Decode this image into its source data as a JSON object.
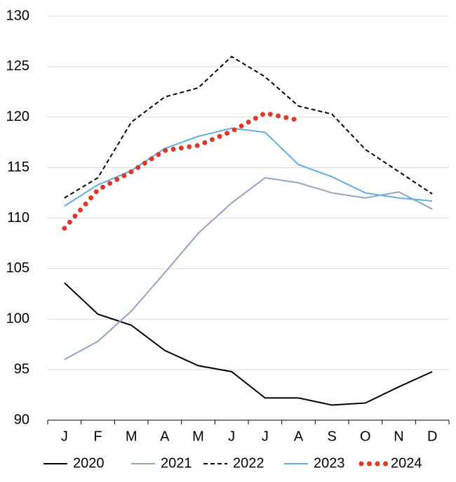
{
  "chart_data": {
    "type": "line",
    "categories": [
      "J",
      "F",
      "M",
      "A",
      "M",
      "J",
      "J",
      "A",
      "S",
      "O",
      "N",
      "D"
    ],
    "series": [
      {
        "name": "2020",
        "color": "#000000",
        "dash": "solid",
        "values": [
          103.6,
          100.5,
          99.4,
          96.9,
          95.4,
          94.8,
          92.2,
          92.2,
          91.5,
          91.7,
          93.3,
          94.8
        ]
      },
      {
        "name": "2021",
        "color": "#8ea3c6",
        "dash": "solid",
        "values": [
          96.0,
          97.8,
          100.8,
          104.6,
          108.5,
          111.5,
          114.0,
          113.5,
          112.5,
          112.0,
          112.6,
          110.9
        ]
      },
      {
        "name": "2022",
        "color": "#000000",
        "dash": "dashed",
        "values": [
          112.0,
          114.0,
          119.5,
          122.0,
          122.9,
          126.0,
          124.0,
          121.1,
          120.3,
          116.8,
          114.6,
          112.4
        ]
      },
      {
        "name": "2023",
        "color": "#5aafe6",
        "dash": "solid",
        "values": [
          111.2,
          113.3,
          114.7,
          116.9,
          118.1,
          118.9,
          118.5,
          115.3,
          114.1,
          112.5,
          112.0,
          111.7
        ]
      },
      {
        "name": "2024",
        "color": "#e0372b",
        "dash": "dotted",
        "values": [
          109.0,
          112.8,
          114.6,
          116.7,
          117.2,
          118.6,
          120.4,
          119.7,
          null,
          null,
          null,
          null
        ]
      }
    ],
    "ylim": [
      90,
      130
    ],
    "yticks": [
      90,
      95,
      100,
      105,
      110,
      115,
      120,
      125,
      130
    ],
    "grid": true,
    "legend": "bottom"
  }
}
